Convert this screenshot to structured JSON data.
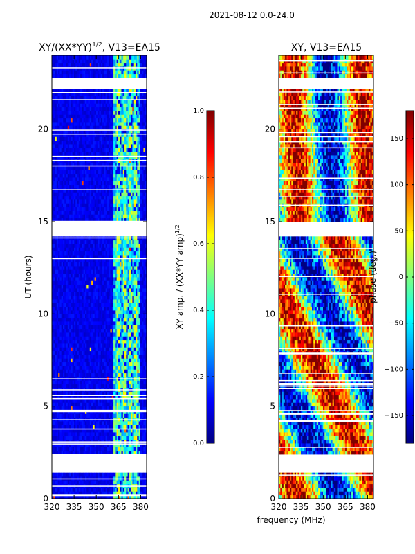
{
  "suptitle": "2021-08-12 0.0-24.0",
  "chart_data": [
    {
      "type": "heatmap",
      "title": "XY/(XX*YY)$^{1/2}$, V13=EA15",
      "title_main": "XY/(XX*YY)",
      "title_sup": "1/2",
      "title_tail": ", V13=EA15",
      "xlabel": "",
      "ylabel": "UT (hours)",
      "xlim": [
        320,
        384
      ],
      "ylim": [
        0,
        24
      ],
      "xticks": [
        320,
        335,
        350,
        365,
        380
      ],
      "yticks": [
        0,
        5,
        10,
        15,
        20
      ],
      "gaps_hours": [
        [
          1.5,
          2.35
        ],
        [
          14.3,
          14.95
        ],
        [
          22.3,
          22.75
        ]
      ],
      "colorbar": {
        "label": "XY amp. / (XX*YY amp)$^{1/2}$",
        "label_main": "XY amp. / (XX*YY amp)",
        "label_sup": "1/2",
        "range": [
          0.0,
          1.0
        ],
        "ticks": [
          "0.0",
          "0.2",
          "0.4",
          "0.6",
          "0.8",
          "1.0"
        ],
        "colormap": "jet"
      }
    },
    {
      "type": "heatmap",
      "title": "XY, V13=EA15",
      "xlabel": "frequency (MHz)",
      "ylabel": "",
      "xlim": [
        320,
        384
      ],
      "ylim": [
        0,
        24
      ],
      "xticks": [
        320,
        335,
        350,
        365,
        380
      ],
      "yticks": [
        0,
        5,
        10,
        15,
        20
      ],
      "gaps_hours": [
        [
          1.5,
          2.35
        ],
        [
          14.3,
          14.95
        ],
        [
          22.3,
          22.75
        ]
      ],
      "colorbar": {
        "label": "phase (deg.)",
        "range": [
          -180,
          180
        ],
        "ticks": [
          "-150",
          "-100",
          "-50",
          "0",
          "50",
          "100",
          "150"
        ],
        "colormap": "jet"
      }
    }
  ]
}
